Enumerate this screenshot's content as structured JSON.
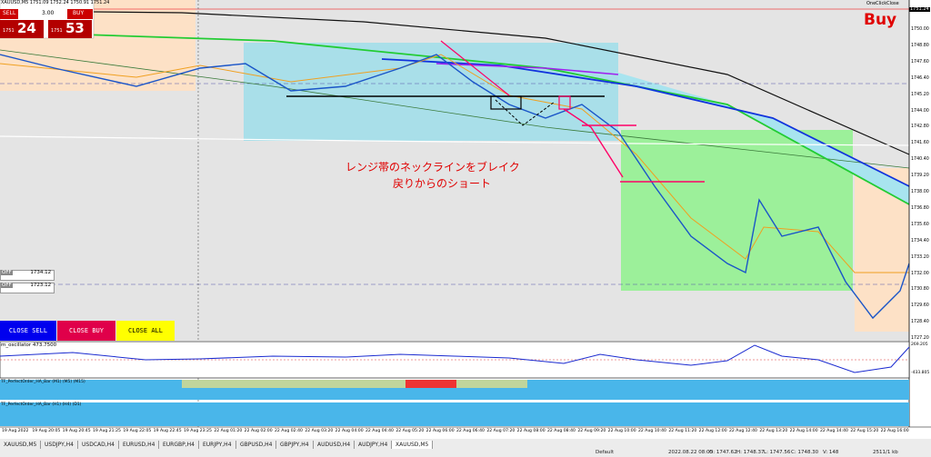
{
  "header": {
    "symbol_info": "XAUUSD,M5  1751.09 1752.24 1750.91 1751.24"
  },
  "trade_panel": {
    "sell": "SELL",
    "buy": "BUY",
    "lots": "3.00",
    "sell_price_small": "1751",
    "sell_price_big": "24",
    "buy_price_small": "1751",
    "buy_price_big": "53"
  },
  "one_click_close": "OneClickClose",
  "signal": "Buy",
  "annotation": [
    "レンジ帯のネックラインをブレイク",
    "戻りからのショート"
  ],
  "price_axis": {
    "current": "1751.24",
    "labels": [
      "1750.00",
      "1748.80",
      "1747.60",
      "1746.40",
      "1745.20",
      "1744.00",
      "1742.80",
      "1741.60",
      "1740.40",
      "1739.20",
      "1738.00",
      "1736.80",
      "1735.60",
      "1734.40",
      "1733.20",
      "1732.00",
      "1730.80",
      "1729.60",
      "1728.40",
      "1727.20"
    ]
  },
  "side_panel": [
    {
      "label": "OFF",
      "value": "1734.12"
    },
    {
      "label": "OFF",
      "value": "1723.12"
    }
  ],
  "buttons": [
    "CLOSE SELL",
    "CLOSE BUY",
    "CLOSE ALL"
  ],
  "oscillator": {
    "title": "m_oscillator 473.7500",
    "max": "269.205",
    "min": "-433.805"
  },
  "indicators": [
    "TF_PerfectOrder_HA_Bar (M1) (M5) (M15)",
    "TF_PerfectOrder_HA_Bar (H1) (H4) (D1)"
  ],
  "time_axis": [
    "19 Aug 2022",
    "19 Aug 20:05",
    "19 Aug 20:45",
    "19 Aug 21:25",
    "19 Aug 22:05",
    "19 Aug 22:45",
    "19 Aug 23:25",
    "22 Aug 01:20",
    "22 Aug 02:00",
    "22 Aug 02:40",
    "22 Aug 03:20",
    "22 Aug 04:00",
    "22 Aug 04:40",
    "22 Aug 05:20",
    "22 Aug 06:00",
    "22 Aug 06:40",
    "22 Aug 07:20",
    "22 Aug 08:00",
    "22 Aug 08:40",
    "22 Aug 09:20",
    "22 Aug 10:00",
    "22 Aug 10:40",
    "22 Aug 11:20",
    "22 Aug 12:00",
    "22 Aug 12:40",
    "22 Aug 13:20",
    "22 Aug 14:00",
    "22 Aug 14:40",
    "22 Aug 15:20",
    "22 Aug 16:00"
  ],
  "tabs": [
    "XAUUSD,M5",
    "USDJPY,H4",
    "USDCAD,H4",
    "EURUSD,H4",
    "EURGBP,H4",
    "EURJPY,H4",
    "GBPUSD,H4",
    "GBPJPY,H4",
    "AUDUSD,H4",
    "AUDJPY,H4",
    "XAUUSD,M5"
  ],
  "status_bar": [
    "Default",
    "2022.08.22 08:05",
    "O: 1747.62",
    "H: 1748.37",
    "L: 1747.56",
    "C: 1748.30",
    "V: 148",
    "2511/1 kb"
  ]
}
